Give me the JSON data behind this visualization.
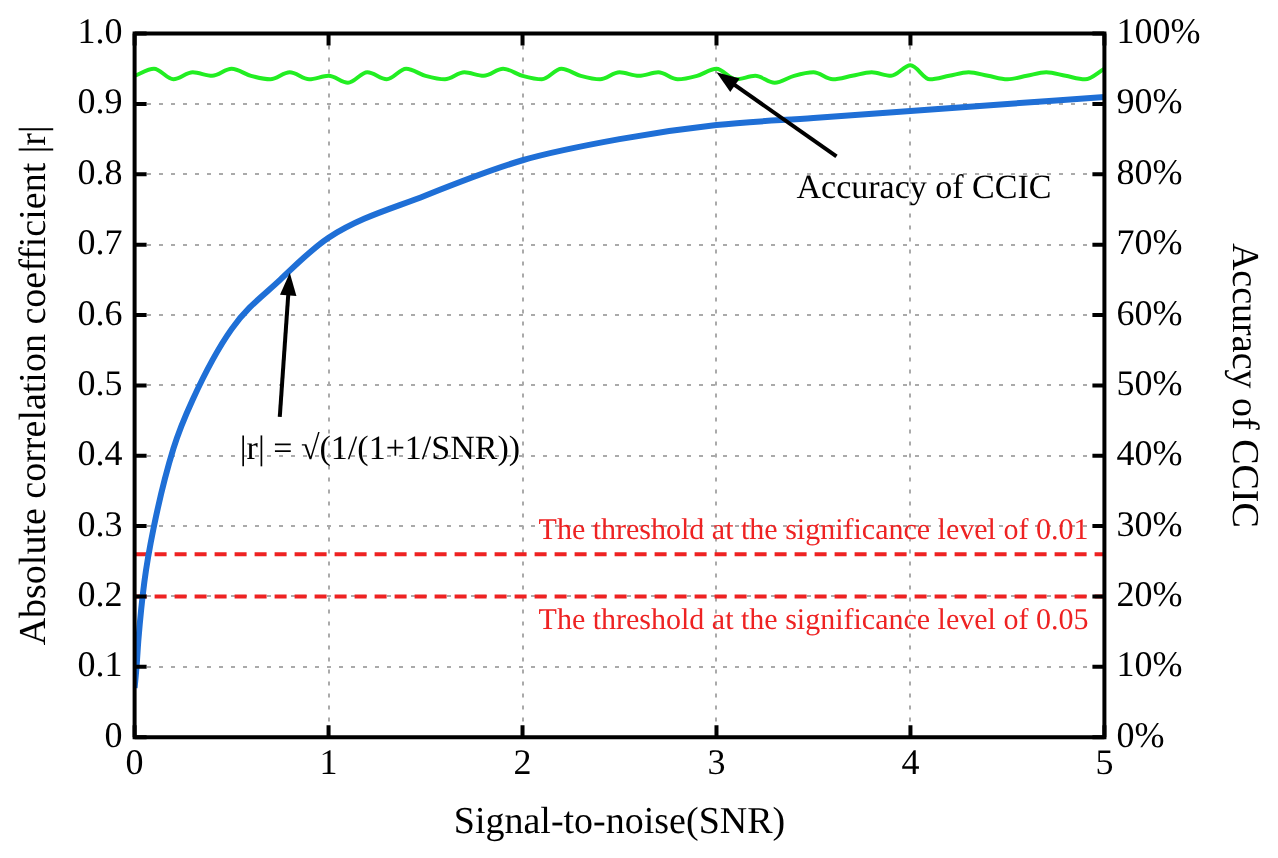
{
  "chart_data": {
    "type": "line",
    "xlabel": "Signal-to-noise(SNR)",
    "ylabel": "Absolute correlation coefficient |r|",
    "y2label": "Accuracy of CCIC",
    "xlim": [
      0,
      5
    ],
    "xticks": [
      0,
      1,
      2,
      3,
      4,
      5
    ],
    "ylim": [
      0,
      1
    ],
    "yticks": [
      0,
      0.1,
      0.2,
      0.3,
      0.4,
      0.5,
      0.6,
      0.7,
      0.8,
      0.9,
      {
        "value": 1,
        "label": "1.0"
      }
    ],
    "y2lim": [
      0,
      100
    ],
    "y2ticks": [
      {
        "value": 0,
        "label": "0%"
      },
      {
        "value": 10,
        "label": "10%"
      },
      {
        "value": 20,
        "label": "20%"
      },
      {
        "value": 30,
        "label": "30%"
      },
      {
        "value": 40,
        "label": "40%"
      },
      {
        "value": 50,
        "label": "50%"
      },
      {
        "value": 60,
        "label": "60%"
      },
      {
        "value": 70,
        "label": "70%"
      },
      {
        "value": 80,
        "label": "80%"
      },
      {
        "value": 90,
        "label": "90%"
      },
      {
        "value": 100,
        "label": "100%"
      }
    ],
    "grid": true,
    "marker": "none",
    "line_style": "solid",
    "legend": false,
    "series": [
      {
        "color": "#1f6fd6",
        "x": [
          0,
          0.01,
          0.02,
          0.05,
          0.1,
          0.2,
          0.3,
          0.5,
          0.75,
          1,
          1.5,
          2,
          2.5,
          3,
          3.5,
          4,
          4.5,
          5
        ],
        "values": [
          0.07,
          0.1,
          0.14,
          0.22,
          0.3,
          0.41,
          0.48,
          0.58,
          0.65,
          0.71,
          0.77,
          0.82,
          0.85,
          0.87,
          0.88,
          0.89,
          0.9,
          0.91
        ]
      },
      {
        "color": "#22ee22",
        "axis": "y2",
        "x": [
          0,
          0.1,
          0.2,
          0.3,
          0.4,
          0.5,
          0.6,
          0.7,
          0.8,
          0.9,
          1,
          1.1,
          1.2,
          1.3,
          1.4,
          1.5,
          1.6,
          1.7,
          1.8,
          1.9,
          2,
          2.1,
          2.2,
          2.3,
          2.4,
          2.5,
          2.6,
          2.7,
          2.8,
          2.9,
          3,
          3.1,
          3.2,
          3.3,
          3.4,
          3.5,
          3.6,
          3.7,
          3.8,
          3.9,
          4,
          4.1,
          4.2,
          4.3,
          4.4,
          4.5,
          4.6,
          4.7,
          4.8,
          4.9,
          5
        ],
        "values": [
          94,
          95,
          93.5,
          94.5,
          94,
          95,
          94,
          93.5,
          94.5,
          93.5,
          94,
          93,
          94.5,
          93.5,
          95,
          94,
          93.5,
          94.5,
          94,
          95,
          94,
          93.5,
          95,
          94,
          93.5,
          94.5,
          94,
          94.5,
          93.5,
          94,
          95,
          93.5,
          94,
          93,
          94,
          94.5,
          93.5,
          94,
          94.5,
          94,
          95.5,
          93.5,
          94,
          94.5,
          94,
          93.5,
          94,
          94.5,
          94,
          93.5,
          95
        ]
      }
    ],
    "ref_lines": [
      {
        "axis": "y",
        "value": 0.26,
        "label": "The threshold at the significance level of 0.01",
        "color": "#ee2222",
        "line_style": "dashed"
      },
      {
        "axis": "y",
        "value": 0.2,
        "label": "The threshold at the significance level of 0.05",
        "color": "#ee2222",
        "line_style": "dashed"
      }
    ],
    "annotations": [
      {
        "text": "|r| = √(1/(1+1/SNR))",
        "x": 0.8,
        "y": 0.66
      },
      {
        "text": "Accuracy of CCIC",
        "x": 3.0,
        "y": 0.945
      }
    ]
  }
}
